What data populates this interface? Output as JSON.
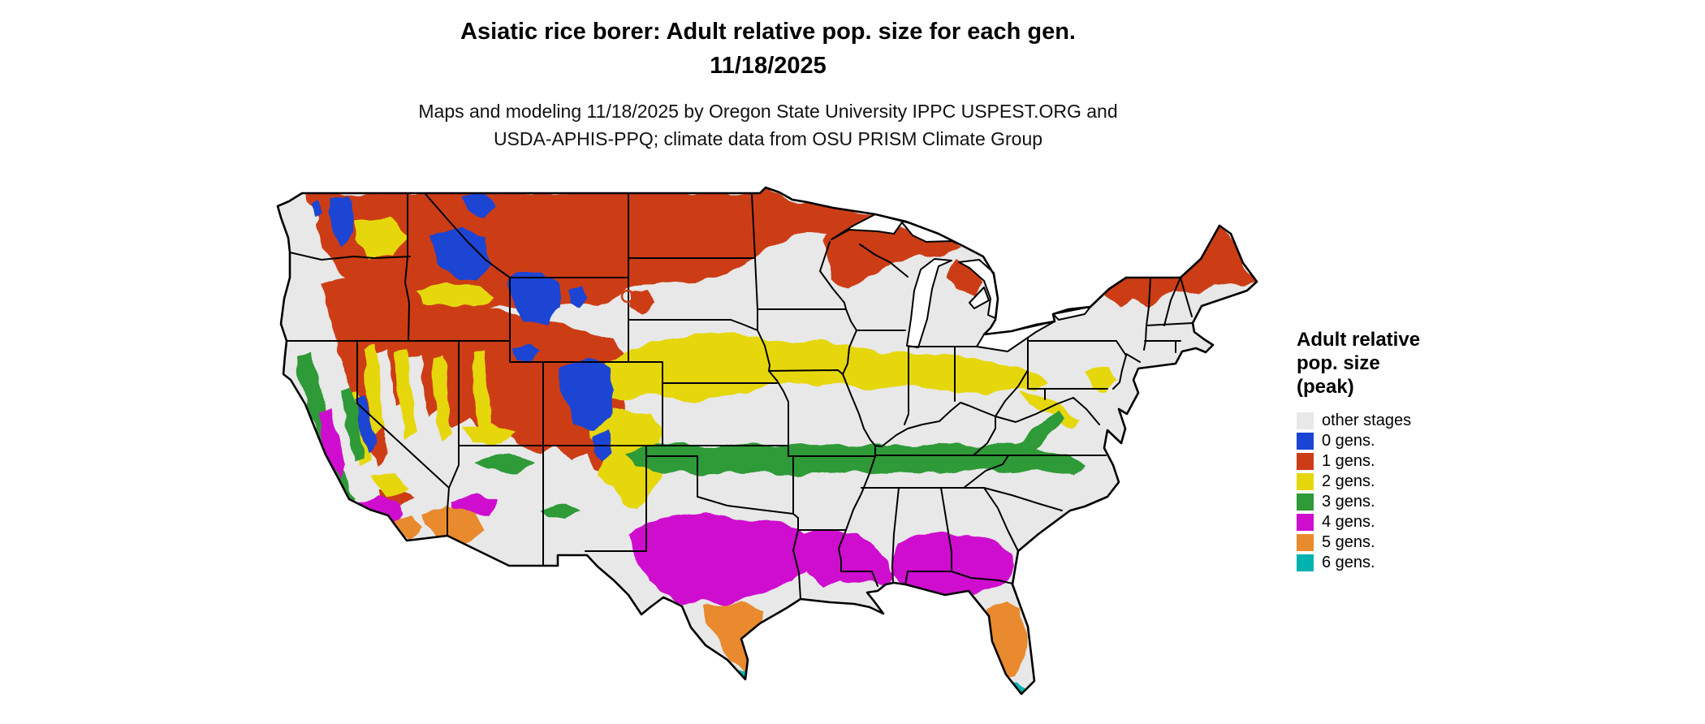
{
  "title": {
    "line1": "Asiatic rice borer: Adult relative pop. size for each gen.",
    "line2": "11/18/2025"
  },
  "subtitle": {
    "line1": "Maps and modeling 11/18/2025 by Oregon State University IPPC USPEST.ORG and",
    "line2": "USDA-APHIS-PPQ; climate data from OSU PRISM Climate Group"
  },
  "legend": {
    "title_lines": [
      "Adult relative",
      "pop. size",
      "(peak)"
    ],
    "items": [
      {
        "label": "other stages",
        "color": "#e8e8e8",
        "key": "other"
      },
      {
        "label": "0 gens.",
        "color": "#1a44d4",
        "key": "g0"
      },
      {
        "label": "1 gens.",
        "color": "#cc3d17",
        "key": "g1"
      },
      {
        "label": "2 gens.",
        "color": "#e6d70d",
        "key": "g2"
      },
      {
        "label": "3 gens.",
        "color": "#2e9a38",
        "key": "g3"
      },
      {
        "label": "4 gens.",
        "color": "#cf0dce",
        "key": "g4"
      },
      {
        "label": "5 gens.",
        "color": "#e98a2f",
        "key": "g5"
      },
      {
        "label": "6 gens.",
        "color": "#00b2b0",
        "key": "g6"
      }
    ]
  }
}
